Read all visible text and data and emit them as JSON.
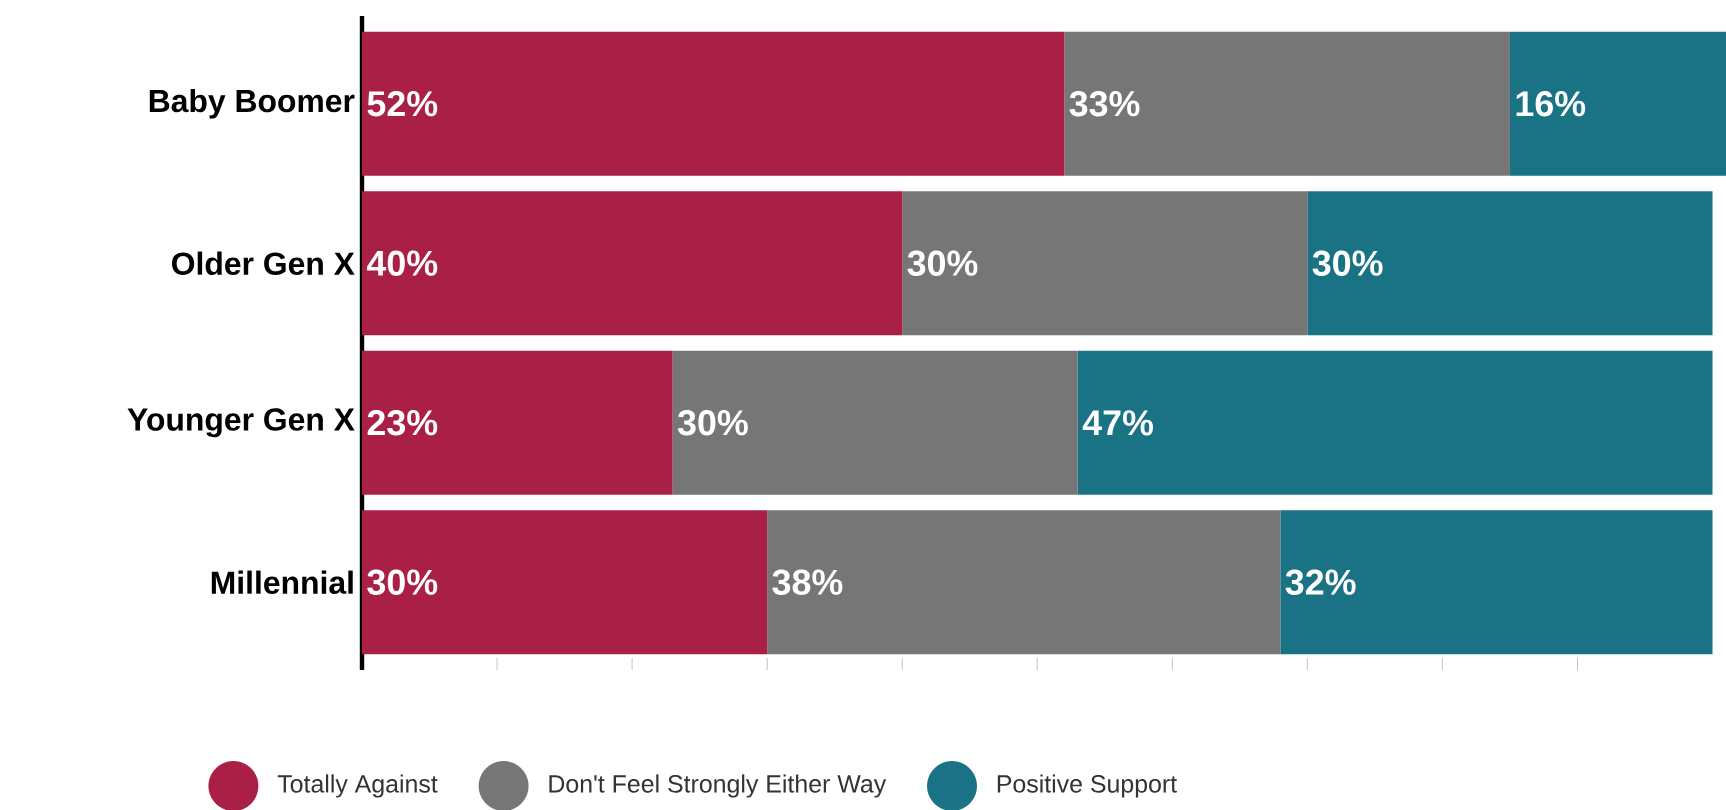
{
  "chart_data": {
    "type": "bar",
    "orientation": "horizontal",
    "stacked": true,
    "categories": [
      "Baby Boomer",
      "Older Gen X",
      "Younger Gen X",
      "Millennial"
    ],
    "series": [
      {
        "name": "Totally Against",
        "color": "#a91f45",
        "values": [
          52,
          40,
          23,
          30
        ],
        "value_labels": [
          "52%",
          "40%",
          "23%",
          "30%"
        ]
      },
      {
        "name": "Don't Feel Strongly Either Way",
        "color": "#767676",
        "values": [
          33,
          30,
          30,
          38
        ],
        "value_labels": [
          "33%",
          "30%",
          "30%",
          "38%"
        ]
      },
      {
        "name": "Positive Support",
        "color": "#1a7285",
        "values": [
          16,
          30,
          47,
          32
        ],
        "value_labels": [
          "16%",
          "30%",
          "47%",
          "32%"
        ]
      }
    ],
    "xlim": [
      0,
      101
    ],
    "xticks": [
      {
        "value": 0,
        "label": null
      },
      {
        "value": 10,
        "label": null
      },
      {
        "value": 20,
        "label": null
      },
      {
        "value": 30,
        "label": null
      },
      {
        "value": 40,
        "label": null
      },
      {
        "value": 50,
        "label": null
      },
      {
        "value": 60,
        "label": null
      },
      {
        "value": 70,
        "label": null
      },
      {
        "value": 80,
        "label": null
      },
      {
        "value": 90,
        "label": null
      }
    ],
    "tick_labels": "y",
    "legend": "bottom",
    "grid": false
  }
}
